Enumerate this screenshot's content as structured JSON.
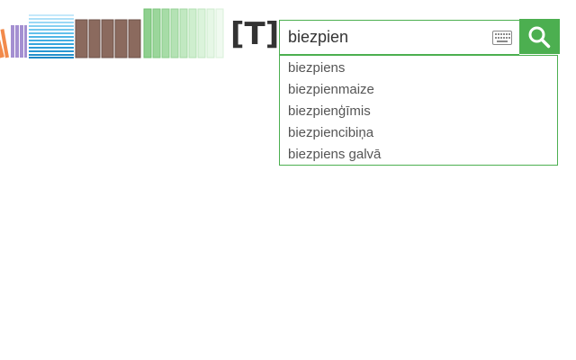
{
  "header": {
    "tag_label": "[T]:"
  },
  "logo": {
    "icon": "bookshelf-logo-icon",
    "colors": {
      "orange": "#f28a4b",
      "purple": "#a48fd1",
      "blue": "#2b9fd9",
      "light_blue": "#8fd3f4",
      "brown": "#8b6a5e",
      "green": "#9fd6a0",
      "light_green": "#d6f0d6"
    }
  },
  "search": {
    "value": "biezpien",
    "placeholder": "",
    "keyboard_icon": "keyboard-icon",
    "button_icon": "search-icon",
    "accent_color": "#4caf50"
  },
  "suggestions": [
    "biezpiens",
    "biezpienmaize",
    "biezpienģīmis",
    "biezpiencibiņa",
    "biezpiens galvā"
  ]
}
